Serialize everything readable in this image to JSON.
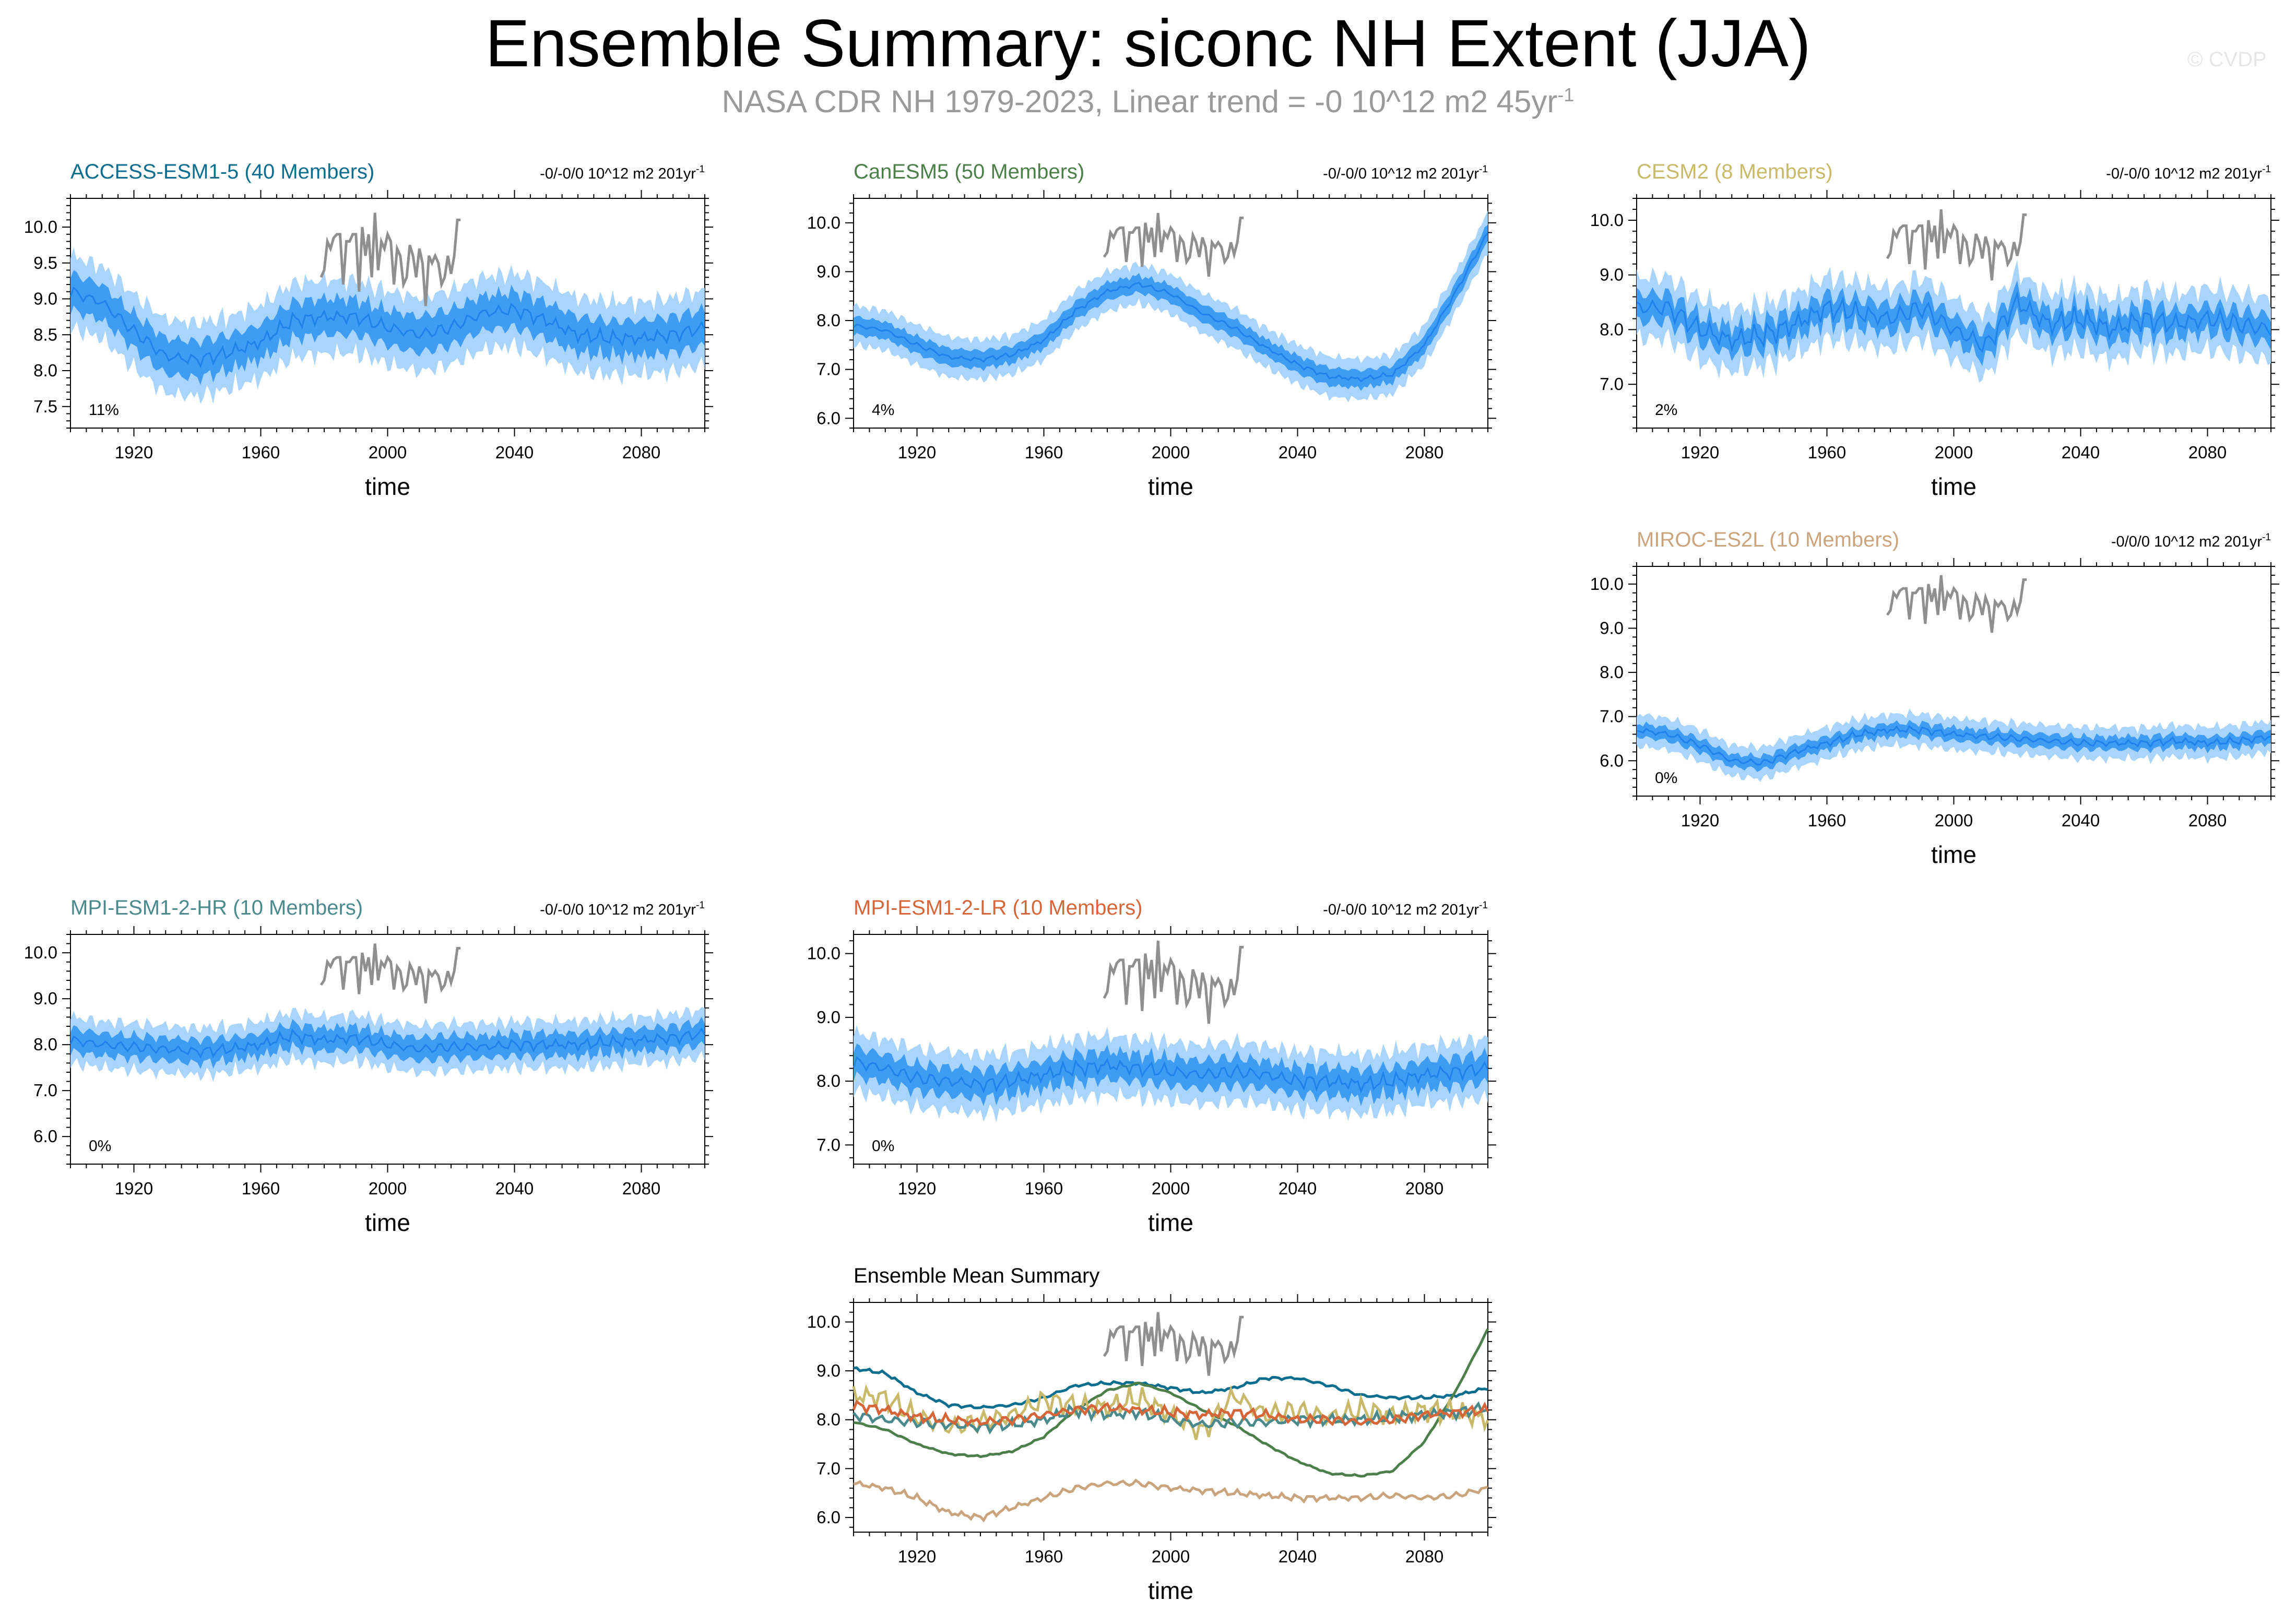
{
  "title": "Ensemble Summary: siconc NH Extent (JJA)",
  "subtitle_main": "NASA CDR NH 1979-2023, Linear trend = -0 10^12 m2 45yr",
  "subtitle_exp": "-1",
  "watermark": "© CVDP",
  "colors": {
    "band_outer": "#a9d4fb",
    "band_inner": "#3f9cf3",
    "mean_line": "#1f82e8",
    "obs_line": "#8f8f8f",
    "axis": "#000000"
  },
  "chart_data": [
    {
      "id": "access",
      "type": "area",
      "title": "ACCESS-ESM1-5 (40 Members)",
      "title_color": "#0b6e8f",
      "trend_main": "-0/-0/0 10^12 m2 201yr",
      "trend_exp": "-1",
      "percent": "11%",
      "xlabel": "time",
      "xlim": [
        1900,
        2100
      ],
      "xticks": [
        "1920",
        "1960",
        "2000",
        "2040",
        "2080"
      ],
      "ylim": [
        7.2,
        10.4
      ],
      "yticks": [
        "7.5",
        "8.0",
        "8.5",
        "9.0",
        "9.5",
        "10.0"
      ],
      "mean_x": [
        1900,
        1910,
        1920,
        1930,
        1940,
        1950,
        1960,
        1970,
        1980,
        1990,
        2000,
        2010,
        2020,
        2030,
        2040,
        2050,
        2060,
        2070,
        2080,
        2090,
        2100
      ],
      "mean_y": [
        9.1,
        8.95,
        8.55,
        8.2,
        8.15,
        8.25,
        8.4,
        8.7,
        8.75,
        8.75,
        8.6,
        8.5,
        8.6,
        8.8,
        8.85,
        8.7,
        8.5,
        8.45,
        8.45,
        8.5,
        8.6
      ],
      "inner_spread": 0.25,
      "outer_spread": 0.5,
      "wiggle": 0.12
    },
    {
      "id": "canesm5",
      "type": "area",
      "title": "CanESM5 (50 Members)",
      "title_color": "#4c7f4a",
      "trend_main": "-0/-0/0 10^12 m2 201yr",
      "trend_exp": "-1",
      "percent": "4%",
      "xlabel": "time",
      "xlim": [
        1900,
        2100
      ],
      "xticks": [
        "1920",
        "1960",
        "2000",
        "2040",
        "2080"
      ],
      "ylim": [
        5.8,
        10.5
      ],
      "yticks": [
        "6.0",
        "7.0",
        "8.0",
        "9.0",
        "10.0"
      ],
      "mean_x": [
        1900,
        1910,
        1920,
        1930,
        1940,
        1950,
        1960,
        1970,
        1980,
        1990,
        2000,
        2010,
        2020,
        2030,
        2040,
        2050,
        2060,
        2070,
        2080,
        2090,
        2100
      ],
      "mean_y": [
        7.9,
        7.8,
        7.5,
        7.25,
        7.2,
        7.3,
        7.6,
        8.2,
        8.6,
        8.75,
        8.55,
        8.15,
        7.85,
        7.45,
        7.1,
        6.85,
        6.8,
        6.9,
        7.5,
        8.6,
        9.8
      ],
      "inner_spread": 0.18,
      "outer_spread": 0.4,
      "wiggle": 0.06
    },
    {
      "id": "cesm2",
      "type": "area",
      "title": "CESM2 (8 Members)",
      "title_color": "#c9b96a",
      "trend_main": "-0/-0/0 10^12 m2 201yr",
      "trend_exp": "-1",
      "percent": "2%",
      "xlabel": "time",
      "xlim": [
        1900,
        2100
      ],
      "xticks": [
        "1920",
        "1960",
        "2000",
        "2040",
        "2080"
      ],
      "ylim": [
        6.2,
        10.4
      ],
      "yticks": [
        "7.0",
        "8.0",
        "9.0",
        "10.0"
      ],
      "mean_x": [
        1900,
        1910,
        1920,
        1930,
        1940,
        1950,
        1960,
        1970,
        1980,
        1990,
        2000,
        2010,
        2020,
        2030,
        2040,
        2050,
        2060,
        2070,
        2080,
        2090,
        2100
      ],
      "mean_y": [
        8.4,
        8.4,
        8.0,
        7.8,
        7.9,
        8.1,
        8.4,
        8.3,
        8.2,
        8.4,
        8.0,
        7.7,
        8.5,
        8.1,
        8.2,
        8.0,
        8.2,
        8.1,
        8.2,
        8.1,
        8.0
      ],
      "inner_spread": 0.25,
      "outer_spread": 0.55,
      "wiggle": 0.25
    },
    {
      "id": "miroc",
      "type": "area",
      "title": "MIROC-ES2L (10 Members)",
      "title_color": "#c9a47c",
      "trend_main": "-0/0/0 10^12 m2 201yr",
      "trend_exp": "-1",
      "percent": "0%",
      "xlabel": "time",
      "xlim": [
        1900,
        2100
      ],
      "xticks": [
        "1920",
        "1960",
        "2000",
        "2040",
        "2080"
      ],
      "ylim": [
        5.2,
        10.4
      ],
      "yticks": [
        "6.0",
        "7.0",
        "8.0",
        "9.0",
        "10.0"
      ],
      "mean_x": [
        1900,
        1910,
        1920,
        1930,
        1940,
        1950,
        1960,
        1970,
        1980,
        1990,
        2000,
        2010,
        2020,
        2030,
        2040,
        2050,
        2060,
        2070,
        2080,
        2090,
        2100
      ],
      "mean_y": [
        6.7,
        6.6,
        6.35,
        6.0,
        5.95,
        6.2,
        6.4,
        6.6,
        6.7,
        6.7,
        6.6,
        6.55,
        6.5,
        6.45,
        6.4,
        6.4,
        6.4,
        6.45,
        6.4,
        6.45,
        6.55
      ],
      "inner_spread": 0.15,
      "outer_spread": 0.35,
      "wiggle": 0.1
    },
    {
      "id": "mpi-hr",
      "type": "area",
      "title": "MPI-ESM1-2-HR (10 Members)",
      "title_color": "#4a8a8c",
      "trend_main": "-0/-0/0 10^12 m2 201yr",
      "trend_exp": "-1",
      "percent": "0%",
      "xlabel": "time",
      "xlim": [
        1900,
        2100
      ],
      "xticks": [
        "1920",
        "1960",
        "2000",
        "2040",
        "2080"
      ],
      "ylim": [
        5.4,
        10.4
      ],
      "yticks": [
        "6.0",
        "7.0",
        "8.0",
        "9.0",
        "10.0"
      ],
      "mean_x": [
        1900,
        1910,
        1920,
        1930,
        1940,
        1950,
        1960,
        1970,
        1980,
        1990,
        2000,
        2010,
        2020,
        2030,
        2040,
        2050,
        2060,
        2070,
        2080,
        2090,
        2100
      ],
      "mean_y": [
        8.1,
        8.0,
        7.95,
        7.9,
        7.85,
        7.9,
        8.0,
        8.2,
        8.1,
        8.15,
        8.0,
        7.9,
        7.95,
        7.95,
        8.0,
        8.0,
        8.0,
        8.05,
        8.1,
        8.15,
        8.25
      ],
      "inner_spread": 0.25,
      "outer_spread": 0.5,
      "wiggle": 0.15
    },
    {
      "id": "mpi-lr",
      "type": "area",
      "title": "MPI-ESM1-2-LR (10 Members)",
      "title_color": "#d4663a",
      "trend_main": "-0/-0/0 10^12 m2 201yr",
      "trend_exp": "-1",
      "percent": "0%",
      "xlabel": "time",
      "xlim": [
        1900,
        2100
      ],
      "xticks": [
        "1920",
        "1960",
        "2000",
        "2040",
        "2080"
      ],
      "ylim": [
        6.7,
        10.3
      ],
      "yticks": [
        "7.0",
        "8.0",
        "9.0",
        "10.0"
      ],
      "mean_x": [
        1900,
        1910,
        1920,
        1930,
        1940,
        1950,
        1960,
        1970,
        1980,
        1990,
        2000,
        2010,
        2020,
        2030,
        2040,
        2050,
        2060,
        2070,
        2080,
        2090,
        2100
      ],
      "mean_y": [
        8.3,
        8.2,
        8.05,
        8.0,
        7.95,
        8.0,
        8.1,
        8.2,
        8.25,
        8.2,
        8.15,
        8.1,
        8.15,
        8.1,
        8.0,
        8.0,
        7.95,
        8.0,
        8.1,
        8.15,
        8.2
      ],
      "inner_spread": 0.22,
      "outer_spread": 0.45,
      "wiggle": 0.14
    },
    {
      "id": "mean-summary",
      "type": "line",
      "title": "Ensemble Mean Summary",
      "title_color": "#000000",
      "xlabel": "time",
      "xlim": [
        1900,
        2100
      ],
      "xticks": [
        "1920",
        "1960",
        "2000",
        "2040",
        "2080"
      ],
      "ylim": [
        5.7,
        10.4
      ],
      "yticks": [
        "6.0",
        "7.0",
        "8.0",
        "9.0",
        "10.0"
      ],
      "series": [
        {
          "name": "ACCESS-ESM1-5",
          "color": "#0b6e8f",
          "wiggle": 0.04,
          "x": [
            1900,
            1910,
            1920,
            1930,
            1940,
            1950,
            1960,
            1970,
            1980,
            1990,
            2000,
            2010,
            2020,
            2030,
            2040,
            2050,
            2060,
            2070,
            2080,
            2090,
            2100
          ],
          "y": [
            9.05,
            8.95,
            8.55,
            8.3,
            8.25,
            8.3,
            8.45,
            8.7,
            8.75,
            8.75,
            8.65,
            8.55,
            8.65,
            8.85,
            8.85,
            8.7,
            8.5,
            8.45,
            8.45,
            8.5,
            8.65
          ]
        },
        {
          "name": "CanESM5",
          "color": "#4c7f4a",
          "wiggle": 0.02,
          "x": [
            1900,
            1910,
            1920,
            1930,
            1940,
            1950,
            1960,
            1970,
            1980,
            1990,
            2000,
            2010,
            2020,
            2030,
            2040,
            2050,
            2060,
            2070,
            2080,
            2090,
            2100
          ],
          "y": [
            7.95,
            7.8,
            7.5,
            7.3,
            7.25,
            7.35,
            7.65,
            8.2,
            8.6,
            8.75,
            8.55,
            8.2,
            7.9,
            7.5,
            7.15,
            6.9,
            6.85,
            6.95,
            7.55,
            8.6,
            9.85
          ]
        },
        {
          "name": "CESM2",
          "color": "#c9b96a",
          "wiggle": 0.28,
          "x": [
            1900,
            1910,
            1920,
            1930,
            1940,
            1950,
            1960,
            1970,
            1980,
            1990,
            2000,
            2010,
            2020,
            2030,
            2040,
            2050,
            2060,
            2070,
            2080,
            2090,
            2100
          ],
          "y": [
            8.5,
            8.45,
            8.05,
            7.85,
            7.95,
            8.1,
            8.4,
            8.3,
            8.25,
            8.45,
            8.1,
            7.75,
            8.5,
            8.1,
            8.2,
            8.05,
            8.2,
            8.1,
            8.2,
            8.15,
            8.0
          ]
        },
        {
          "name": "MIROC-ES2L",
          "color": "#c9a47c",
          "wiggle": 0.08,
          "x": [
            1900,
            1910,
            1920,
            1930,
            1940,
            1950,
            1960,
            1970,
            1980,
            1990,
            2000,
            2010,
            2020,
            2030,
            2040,
            2050,
            2060,
            2070,
            2080,
            2090,
            2100
          ],
          "y": [
            6.7,
            6.6,
            6.4,
            6.1,
            6.0,
            6.2,
            6.4,
            6.6,
            6.7,
            6.7,
            6.6,
            6.55,
            6.5,
            6.45,
            6.4,
            6.4,
            6.4,
            6.45,
            6.4,
            6.45,
            6.6
          ]
        },
        {
          "name": "MPI-ESM1-2-HR",
          "color": "#4a8a8c",
          "wiggle": 0.14,
          "x": [
            1900,
            1910,
            1920,
            1930,
            1940,
            1950,
            1960,
            1970,
            1980,
            1990,
            2000,
            2010,
            2020,
            2030,
            2040,
            2050,
            2060,
            2070,
            2080,
            2090,
            2100
          ],
          "y": [
            8.1,
            8.0,
            7.95,
            7.9,
            7.85,
            7.9,
            8.0,
            8.2,
            8.1,
            8.15,
            8.0,
            7.9,
            7.95,
            7.95,
            8.0,
            8.0,
            8.0,
            8.05,
            8.1,
            8.15,
            8.25
          ]
        },
        {
          "name": "MPI-ESM1-2-LR",
          "color": "#d4663a",
          "wiggle": 0.12,
          "x": [
            1900,
            1910,
            1920,
            1930,
            1940,
            1950,
            1960,
            1970,
            1980,
            1990,
            2000,
            2010,
            2020,
            2030,
            2040,
            2050,
            2060,
            2070,
            2080,
            2090,
            2100
          ],
          "y": [
            8.3,
            8.2,
            8.05,
            8.0,
            7.95,
            8.0,
            8.1,
            8.2,
            8.25,
            8.2,
            8.15,
            8.1,
            8.15,
            8.1,
            8.0,
            8.0,
            7.95,
            8.0,
            8.1,
            8.15,
            8.2
          ]
        }
      ]
    }
  ],
  "observations": {
    "name": "NASA CDR NH 1979-2023",
    "x": [
      1979,
      1980,
      1981,
      1982,
      1983,
      1984,
      1985,
      1986,
      1987,
      1988,
      1989,
      1990,
      1991,
      1992,
      1993,
      1994,
      1995,
      1996,
      1997,
      1998,
      1999,
      2000,
      2001,
      2002,
      2003,
      2004,
      2005,
      2006,
      2007,
      2008,
      2009,
      2010,
      2011,
      2012,
      2013,
      2014,
      2015,
      2016,
      2017,
      2018,
      2019,
      2020,
      2021,
      2022,
      2023
    ],
    "y": [
      9.3,
      9.4,
      9.8,
      9.7,
      9.85,
      9.9,
      9.9,
      9.2,
      9.8,
      9.8,
      9.9,
      9.9,
      9.1,
      10.0,
      9.6,
      9.9,
      9.3,
      10.2,
      9.4,
      9.8,
      9.7,
      9.9,
      9.8,
      9.2,
      9.7,
      9.6,
      9.2,
      9.3,
      9.75,
      9.6,
      9.3,
      9.7,
      9.5,
      8.9,
      9.6,
      9.5,
      9.6,
      9.5,
      9.2,
      9.3,
      9.6,
      9.35,
      9.6,
      10.1,
      10.1
    ]
  }
}
